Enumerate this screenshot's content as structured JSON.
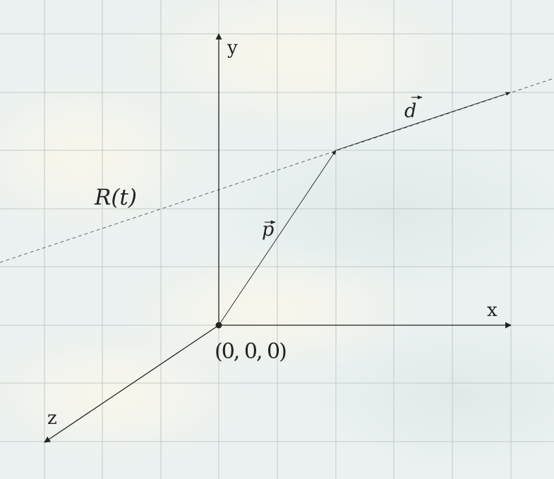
{
  "axes": {
    "x_label": "x",
    "y_label": "y",
    "z_label": "z",
    "origin_label": "(0, 0, 0)"
  },
  "vectors": {
    "p_label": "p",
    "d_label": "d",
    "ray_label": "R(t)"
  },
  "colors": {
    "grid": "#c2c9c8",
    "ink": "#222222",
    "ray": "#666666",
    "cloud_tint": "#f8f5ea"
  }
}
